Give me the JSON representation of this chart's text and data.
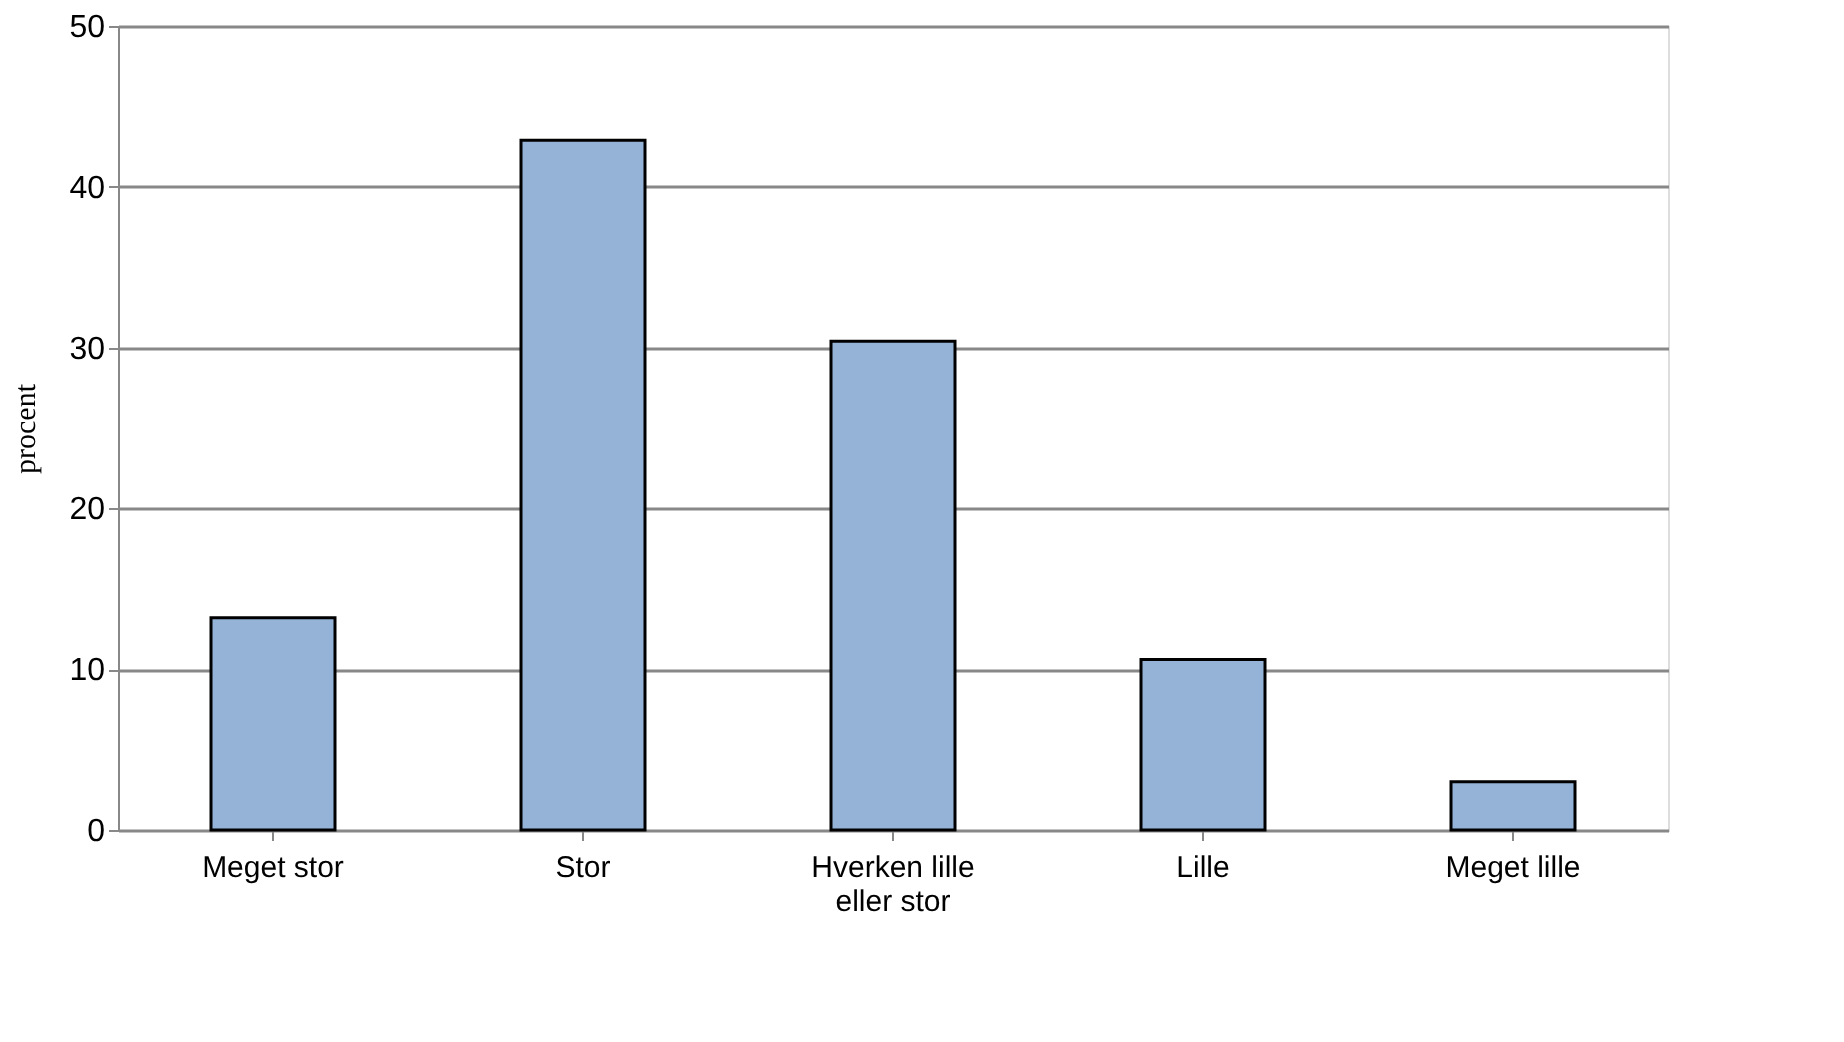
{
  "chart_data": {
    "type": "bar",
    "ylabel": "procent",
    "categories": [
      "Meget stor",
      "Stor",
      "Hverken lille eller stor",
      "Lille",
      "Meget lille"
    ],
    "values": [
      13.2,
      42.9,
      30.4,
      10.6,
      3.0
    ],
    "color": "#95b3d7",
    "ylim": [
      0,
      50
    ],
    "yticks": [
      0,
      10,
      20,
      30,
      40,
      50
    ],
    "grid": "y"
  }
}
